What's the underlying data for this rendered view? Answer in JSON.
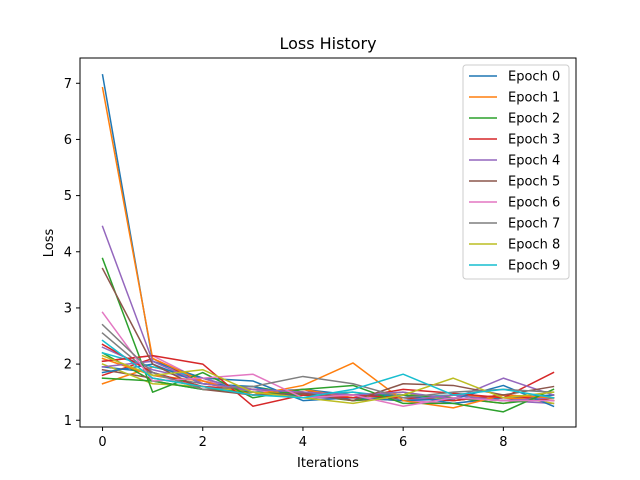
{
  "chart_data": {
    "type": "line",
    "title": "Loss History",
    "xlabel": "Iterations",
    "ylabel": "Loss",
    "xlim": [
      -0.45,
      9.45
    ],
    "ylim": [
      0.88,
      7.45
    ],
    "xticks": [
      0,
      2,
      4,
      6,
      8
    ],
    "yticks": [
      1,
      2,
      3,
      4,
      5,
      6,
      7
    ],
    "grid": false,
    "legend_position": "top-right",
    "x": [
      0,
      1,
      2,
      3,
      4,
      5,
      6,
      7,
      8,
      9
    ],
    "series": [
      {
        "name": "Epoch 0",
        "color": "#1f77b4",
        "values": [
          7.15,
          2.05,
          1.75,
          1.7,
          1.35,
          1.4,
          1.35,
          1.38,
          1.62,
          1.25
        ]
      },
      {
        "name": "Epoch 1",
        "color": "#ff7f0e",
        "values": [
          6.92,
          2.1,
          1.7,
          1.45,
          1.62,
          2.02,
          1.35,
          1.22,
          1.45,
          1.4
        ]
      },
      {
        "name": "Epoch 2",
        "color": "#2ca02c",
        "values": [
          3.88,
          1.5,
          1.85,
          1.4,
          1.55,
          1.62,
          1.3,
          1.3,
          1.15,
          1.55
        ]
      },
      {
        "name": "Epoch 3",
        "color": "#d62728",
        "values": [
          2.05,
          2.15,
          2.0,
          1.25,
          1.45,
          1.4,
          1.55,
          1.48,
          1.4,
          1.85
        ]
      },
      {
        "name": "Epoch 4",
        "color": "#9467bd",
        "values": [
          4.45,
          2.05,
          1.65,
          1.55,
          1.5,
          1.45,
          1.5,
          1.38,
          1.75,
          1.45
        ]
      },
      {
        "name": "Epoch 5",
        "color": "#8c564b",
        "values": [
          3.7,
          2.0,
          1.55,
          1.45,
          1.48,
          1.35,
          1.65,
          1.62,
          1.45,
          1.6
        ]
      },
      {
        "name": "Epoch 6",
        "color": "#e377c2",
        "values": [
          2.92,
          1.7,
          1.75,
          1.82,
          1.4,
          1.45,
          1.25,
          1.4,
          1.35,
          1.35
        ]
      },
      {
        "name": "Epoch 7",
        "color": "#7f7f7f",
        "values": [
          2.7,
          1.85,
          1.55,
          1.6,
          1.78,
          1.65,
          1.4,
          1.5,
          1.55,
          1.5
        ]
      },
      {
        "name": "Epoch 8",
        "color": "#bcbd22",
        "values": [
          2.15,
          1.8,
          1.9,
          1.5,
          1.4,
          1.3,
          1.45,
          1.75,
          1.4,
          1.5
        ]
      },
      {
        "name": "Epoch 9",
        "color": "#17becf",
        "values": [
          2.42,
          1.75,
          1.6,
          1.45,
          1.4,
          1.55,
          1.82,
          1.45,
          1.55,
          1.4
        ]
      }
    ],
    "unlabeled_series": [
      {
        "color": "#1f77b4",
        "values": [
          1.95,
          1.85,
          1.6,
          1.5,
          1.55,
          1.45,
          1.4,
          1.35,
          1.45,
          1.4
        ]
      },
      {
        "color": "#ff7f0e",
        "values": [
          1.65,
          1.95,
          1.75,
          1.45,
          1.5,
          1.35,
          1.45,
          1.4,
          1.3,
          1.45
        ]
      },
      {
        "color": "#2ca02c",
        "values": [
          2.2,
          1.7,
          1.55,
          1.6,
          1.45,
          1.5,
          1.35,
          1.45,
          1.4,
          1.35
        ]
      },
      {
        "color": "#d62728",
        "values": [
          1.8,
          2.1,
          1.65,
          1.55,
          1.5,
          1.4,
          1.5,
          1.35,
          1.45,
          1.4
        ]
      },
      {
        "color": "#9467bd",
        "values": [
          2.3,
          1.9,
          1.7,
          1.5,
          1.45,
          1.4,
          1.45,
          1.4,
          1.35,
          1.3
        ]
      },
      {
        "color": "#8c564b",
        "values": [
          1.9,
          1.75,
          1.6,
          1.45,
          1.55,
          1.35,
          1.4,
          1.45,
          1.35,
          1.45
        ]
      },
      {
        "color": "#e377c2",
        "values": [
          2.05,
          2.15,
          1.7,
          1.55,
          1.4,
          1.45,
          1.35,
          1.3,
          1.4,
          1.35
        ]
      },
      {
        "color": "#7f7f7f",
        "values": [
          2.55,
          1.8,
          1.65,
          1.55,
          1.5,
          1.45,
          1.4,
          1.4,
          1.35,
          1.4
        ]
      },
      {
        "color": "#bcbd22",
        "values": [
          2.0,
          1.65,
          1.6,
          1.5,
          1.45,
          1.4,
          1.5,
          1.35,
          1.45,
          1.3
        ]
      },
      {
        "color": "#17becf",
        "values": [
          2.2,
          1.95,
          1.75,
          1.5,
          1.45,
          1.5,
          1.4,
          1.45,
          1.35,
          1.4
        ]
      },
      {
        "color": "#1f77b4",
        "values": [
          1.85,
          2.0,
          1.65,
          1.6,
          1.4,
          1.45,
          1.45,
          1.3,
          1.4,
          1.45
        ]
      },
      {
        "color": "#ff7f0e",
        "values": [
          2.1,
          1.8,
          1.7,
          1.45,
          1.55,
          1.4,
          1.35,
          1.45,
          1.4,
          1.35
        ]
      },
      {
        "color": "#2ca02c",
        "values": [
          1.75,
          1.7,
          1.55,
          1.5,
          1.45,
          1.35,
          1.45,
          1.4,
          1.3,
          1.4
        ]
      },
      {
        "color": "#d62728",
        "values": [
          2.35,
          1.85,
          1.6,
          1.55,
          1.5,
          1.45,
          1.4,
          1.35,
          1.45,
          1.35
        ]
      },
      {
        "color": "#9467bd",
        "values": [
          1.95,
          2.05,
          1.75,
          1.5,
          1.4,
          1.4,
          1.35,
          1.45,
          1.35,
          1.4
        ]
      }
    ]
  }
}
